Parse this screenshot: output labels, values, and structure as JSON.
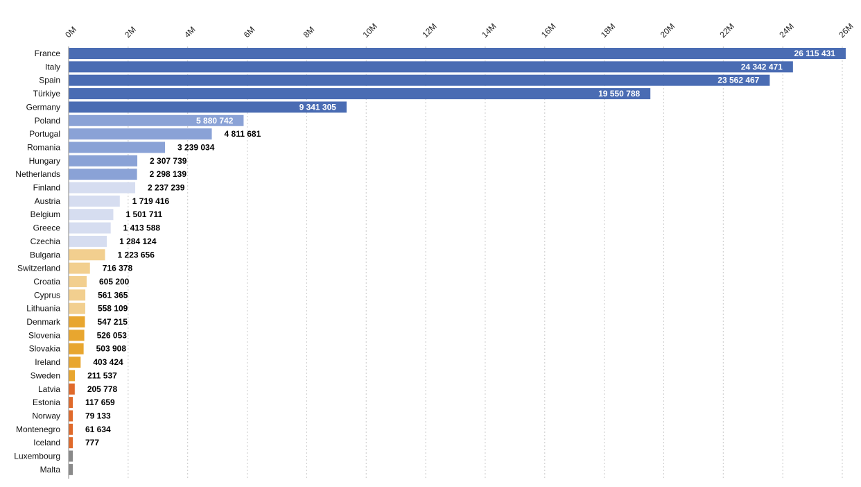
{
  "chart_data": {
    "type": "bar",
    "orientation": "horizontal",
    "xlim": [
      0,
      26000000
    ],
    "x_ticks": [
      0,
      2000000,
      4000000,
      6000000,
      8000000,
      10000000,
      12000000,
      14000000,
      16000000,
      18000000,
      20000000,
      22000000,
      24000000,
      26000000
    ],
    "x_tick_labels": [
      "0M",
      "2M",
      "4M",
      "6M",
      "8M",
      "10M",
      "12M",
      "14M",
      "16M",
      "18M",
      "20M",
      "22M",
      "24M",
      "26M"
    ],
    "grid": true,
    "legend": "none",
    "categories": [
      "France",
      "Italy",
      "Spain",
      "Türkiye",
      "Germany",
      "Poland",
      "Portugal",
      "Romania",
      "Hungary",
      "Netherlands",
      "Finland",
      "Austria",
      "Belgium",
      "Greece",
      "Czechia",
      "Bulgaria",
      "Switzerland",
      "Croatia",
      "Cyprus",
      "Lithuania",
      "Denmark",
      "Slovenia",
      "Slovakia",
      "Ireland",
      "Sweden",
      "Latvia",
      "Estonia",
      "Norway",
      "Montenegro",
      "Iceland",
      "Luxembourg",
      "Malta"
    ],
    "values": [
      26115431,
      24342471,
      23562467,
      19550788,
      9341305,
      5880742,
      4811681,
      3239034,
      2307739,
      2298139,
      2237239,
      1719416,
      1501711,
      1413588,
      1284124,
      1223656,
      716378,
      605200,
      561365,
      558109,
      547215,
      526053,
      503908,
      403424,
      211537,
      205778,
      117659,
      79133,
      61634,
      777,
      null,
      null
    ],
    "value_labels": [
      "26 115 431",
      "24 342 471",
      "23 562 467",
      "19 550 788",
      "9 341 305",
      "5 880 742",
      "4 811 681",
      "3 239 034",
      "2 307 739",
      "2 298 139",
      "2 237 239",
      "1 719 416",
      "1 501 711",
      "1 413 588",
      "1 284 124",
      "1 223 656",
      "716 378",
      "605 200",
      "561 365",
      "558 109",
      "547 215",
      "526 053",
      "503 908",
      "403 424",
      "211 537",
      "205 778",
      "117 659",
      "79 133",
      "61 634",
      "777",
      "",
      ""
    ],
    "colors": [
      "#4a6cb3",
      "#4a6cb3",
      "#4a6cb3",
      "#4a6cb3",
      "#4a6cb3",
      "#8aa2d6",
      "#8aa2d6",
      "#8aa2d6",
      "#8aa2d6",
      "#8aa2d6",
      "#d6ddf0",
      "#d6ddf0",
      "#d6ddf0",
      "#d6ddf0",
      "#d6ddf0",
      "#f2cf8f",
      "#f2cf8f",
      "#f2cf8f",
      "#f2cf8f",
      "#f2cf8f",
      "#e8a62f",
      "#e8a62f",
      "#e8a62f",
      "#e8a62f",
      "#e8a62f",
      "#e06a2b",
      "#e06a2b",
      "#e06a2b",
      "#e06a2b",
      "#e06a2b",
      "#8a8a8a",
      "#8a8a8a"
    ],
    "label_inside_bar": [
      true,
      true,
      true,
      true,
      true,
      true,
      false,
      false,
      false,
      false,
      false,
      false,
      false,
      false,
      false,
      false,
      false,
      false,
      false,
      false,
      false,
      false,
      false,
      false,
      false,
      false,
      false,
      false,
      false,
      false,
      false,
      false
    ]
  }
}
